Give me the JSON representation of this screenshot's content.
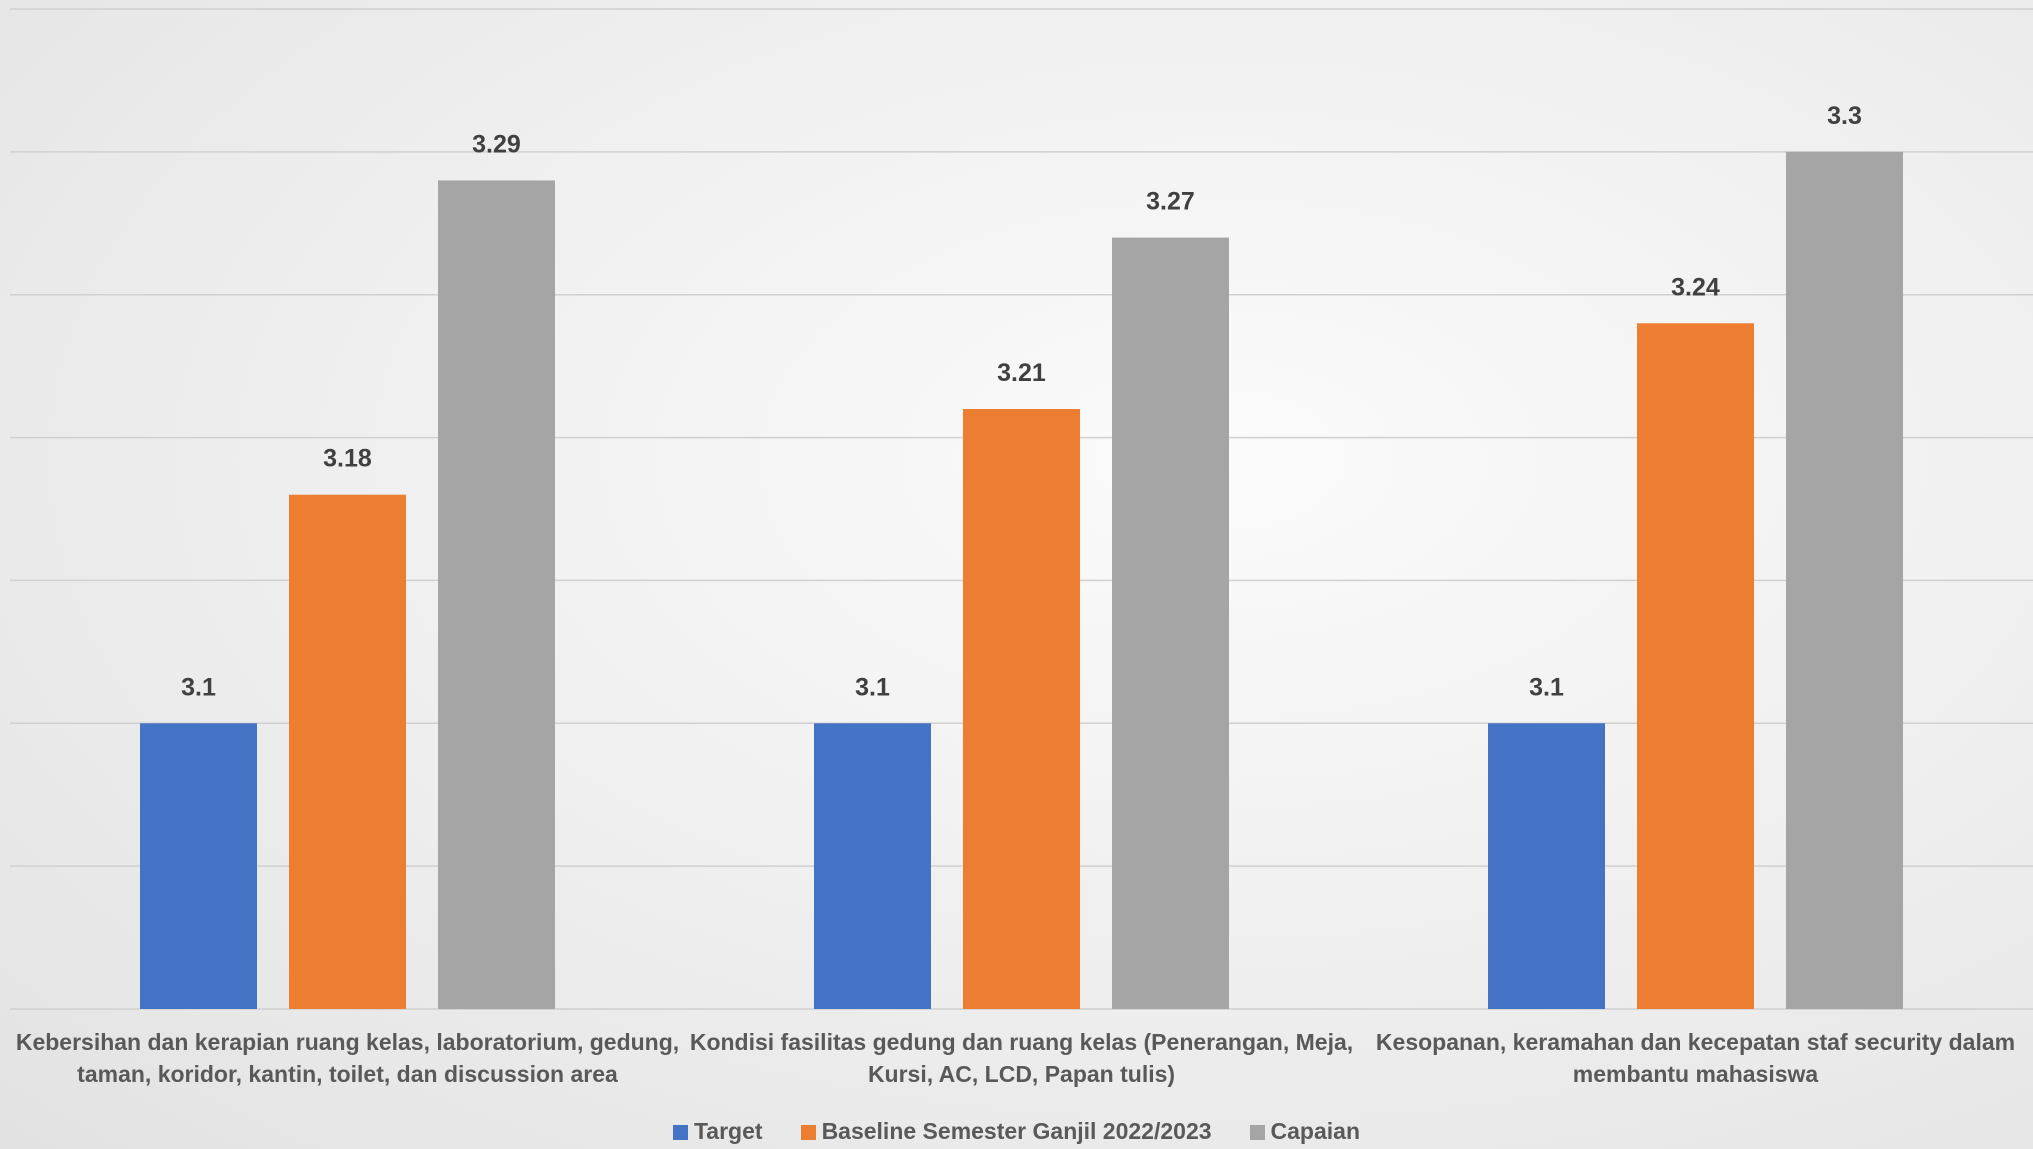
{
  "chart_data": {
    "type": "bar",
    "categories": [
      "Kebersihan dan kerapian ruang kelas, laboratorium, gedung, taman, koridor, kantin, toilet, dan discussion area",
      "Kondisi fasilitas gedung dan ruang kelas (Penerangan, Meja, Kursi, AC, LCD, Papan tulis)",
      "Kesopanan, keramahan dan kecepatan staf security dalam membantu mahasiswa"
    ],
    "series": [
      {
        "name": "Target",
        "color": "#4472c4",
        "values": [
          3.1,
          3.1,
          3.1
        ]
      },
      {
        "name": "Baseline Semester Ganjil 2022/2023",
        "color": "#ed7d31",
        "values": [
          3.18,
          3.21,
          3.24
        ]
      },
      {
        "name": "Capaian",
        "color": "#a5a5a5",
        "values": [
          3.29,
          3.27,
          3.3
        ]
      }
    ],
    "ylim": [
      3.0,
      3.35
    ],
    "yticks": [
      3.0,
      3.05,
      3.1,
      3.15,
      3.2,
      3.25,
      3.3,
      3.35
    ],
    "grid": true
  }
}
